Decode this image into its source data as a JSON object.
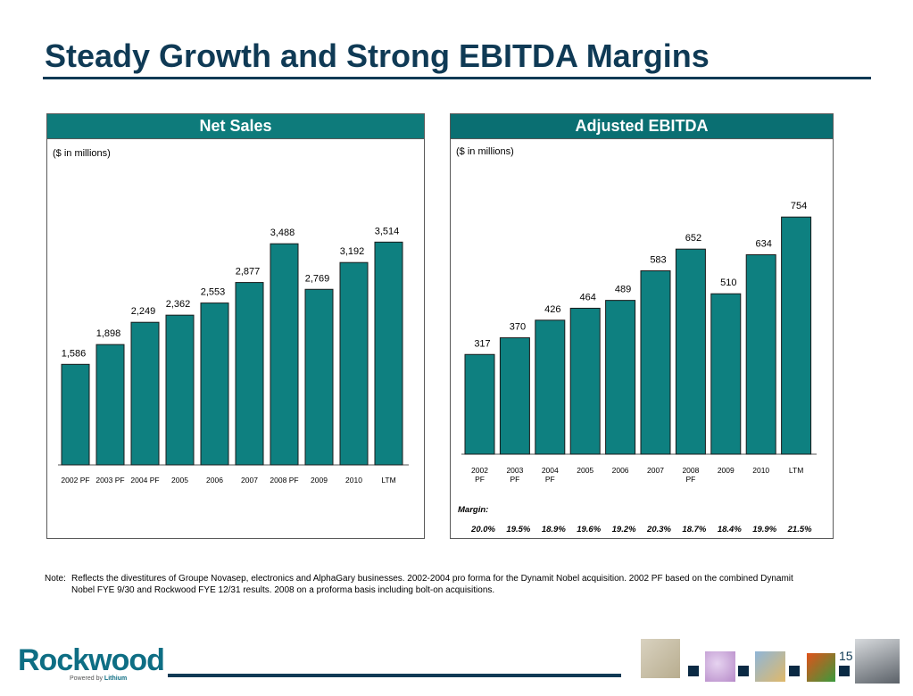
{
  "page": {
    "title": "Steady Growth and Strong EBITDA Margins",
    "page_number": "15",
    "note_label": "Note:",
    "note_text": "Reflects the divestitures of Groupe Novasep, electronics and AlphaGary businesses. 2002-2004 pro forma for the Dynamit Nobel acquisition. 2002 PF based on the combined Dynamit Nobel FYE 9/30 and Rockwood FYE 12/31 results. 2008 on a proforma basis including bolt-on acquisitions.",
    "logo_text": "Rockwood",
    "logo_sub_prefix": "Powered by ",
    "logo_sub_brand": "Lithium"
  },
  "colors": {
    "bar": "#0e8080",
    "bar_border": "#1a1a1a",
    "header": "#0e7b7b",
    "title": "#0f3a55"
  },
  "chart_data": [
    {
      "type": "bar",
      "title": "Net Sales",
      "unit_label": "($ in millions)",
      "categories": [
        "2002 PF",
        "2003 PF",
        "2004 PF",
        "2005",
        "2006",
        "2007",
        "2008 PF",
        "2009",
        "2010",
        "LTM"
      ],
      "values": [
        1586,
        1898,
        2249,
        2362,
        2553,
        2877,
        3488,
        2769,
        3192,
        3514
      ],
      "value_labels": [
        "1,586",
        "1,898",
        "2,249",
        "2,362",
        "2,553",
        "2,877",
        "3,488",
        "2,769",
        "3,192",
        "3,514"
      ],
      "ylim": [
        0,
        3800
      ],
      "grid": false,
      "legend": "none"
    },
    {
      "type": "bar",
      "title": "Adjusted EBITDA",
      "unit_label": "($ in millions)",
      "categories": [
        "2002 PF",
        "2003 PF",
        "2004 PF",
        "2005",
        "2006",
        "2007",
        "2008 PF",
        "2009",
        "2010",
        "LTM"
      ],
      "values": [
        317,
        370,
        426,
        464,
        489,
        583,
        652,
        510,
        634,
        754
      ],
      "value_labels": [
        "317",
        "370",
        "426",
        "464",
        "489",
        "583",
        "652",
        "510",
        "634",
        "754"
      ],
      "margin_label": "Margin:",
      "margins": [
        "20.0%",
        "19.5%",
        "18.9%",
        "19.6%",
        "19.2%",
        "20.3%",
        "18.7%",
        "18.4%",
        "19.9%",
        "21.5%"
      ],
      "ylim": [
        0,
        800
      ],
      "grid": false,
      "legend": "none"
    }
  ],
  "thumbnails": [
    "lab-flask-icon",
    "colored-particles-icon",
    "metal-sheets-icon",
    "pigment-swatch-icon",
    "car-icon"
  ]
}
